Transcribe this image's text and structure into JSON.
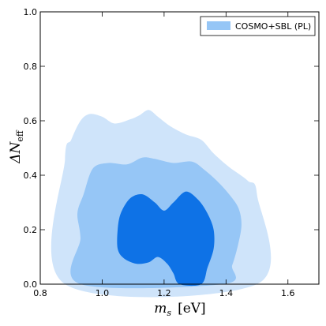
{
  "chart_data": {
    "type": "contour",
    "xlabel": "m_s  [eV]",
    "xlabel_var": "m",
    "xlabel_sub": "s",
    "xlabel_unit": "[eV]",
    "ylabel": "ΔN_eff",
    "ylabel_main": "ΔN",
    "ylabel_sub": "eff",
    "xlim": [
      0.8,
      1.7
    ],
    "ylim": [
      0.0,
      1.0
    ],
    "xticks": [
      0.8,
      1.0,
      1.2,
      1.4,
      1.6
    ],
    "xtick_labels": [
      "0.8",
      "1.0",
      "1.2",
      "1.4",
      "1.6"
    ],
    "yticks": [
      0.0,
      0.2,
      0.4,
      0.6,
      0.8,
      1.0
    ],
    "ytick_labels": [
      "0.0",
      "0.2",
      "0.4",
      "0.6",
      "0.8",
      "1.0"
    ],
    "grid": false,
    "legend": {
      "position": "top-right",
      "entries": [
        "COSMO+SBL (PL)"
      ]
    },
    "colors": {
      "outer": "#cfe4fa",
      "middle": "#96c6f6",
      "inner": "#0e72e6",
      "legend": "#96c6f6"
    },
    "series": [
      {
        "name": "COSMO+SBL (PL)",
        "contours": [
          {
            "level": "outer",
            "points": [
              [
                0.88,
                0.0
              ],
              [
                0.88,
                0.46
              ],
              [
                0.9,
                0.53
              ],
              [
                0.93,
                0.6
              ],
              [
                0.96,
                0.625
              ],
              [
                1.0,
                0.615
              ],
              [
                1.04,
                0.59
              ],
              [
                1.09,
                0.605
              ],
              [
                1.12,
                0.62
              ],
              [
                1.15,
                0.64
              ],
              [
                1.18,
                0.615
              ],
              [
                1.22,
                0.58
              ],
              [
                1.27,
                0.55
              ],
              [
                1.32,
                0.53
              ],
              [
                1.36,
                0.48
              ],
              [
                1.41,
                0.43
              ],
              [
                1.47,
                0.38
              ],
              [
                1.5,
                0.33
              ],
              [
                1.5,
                0.0
              ]
            ]
          },
          {
            "level": "middle",
            "points": [
              [
                0.93,
                0.0
              ],
              [
                0.93,
                0.17
              ],
              [
                0.92,
                0.26
              ],
              [
                0.94,
                0.33
              ],
              [
                0.97,
                0.425
              ],
              [
                1.02,
                0.445
              ],
              [
                1.08,
                0.44
              ],
              [
                1.13,
                0.465
              ],
              [
                1.17,
                0.46
              ],
              [
                1.23,
                0.445
              ],
              [
                1.29,
                0.45
              ],
              [
                1.33,
                0.42
              ],
              [
                1.37,
                0.38
              ],
              [
                1.41,
                0.33
              ],
              [
                1.44,
                0.28
              ],
              [
                1.45,
                0.22
              ],
              [
                1.44,
                0.15
              ],
              [
                1.42,
                0.07
              ],
              [
                1.39,
                0.0
              ]
            ]
          },
          {
            "level": "inner",
            "points": [
              [
                1.07,
                0.095
              ],
              [
                1.05,
                0.13
              ],
              [
                1.05,
                0.2
              ],
              [
                1.06,
                0.26
              ],
              [
                1.09,
                0.315
              ],
              [
                1.13,
                0.33
              ],
              [
                1.17,
                0.3
              ],
              [
                1.2,
                0.27
              ],
              [
                1.23,
                0.3
              ],
              [
                1.27,
                0.34
              ],
              [
                1.31,
                0.31
              ],
              [
                1.34,
                0.26
              ],
              [
                1.36,
                0.2
              ],
              [
                1.36,
                0.13
              ],
              [
                1.34,
                0.06
              ],
              [
                1.32,
                0.0
              ],
              [
                1.25,
                0.0
              ],
              [
                1.23,
                0.04
              ],
              [
                1.21,
                0.075
              ],
              [
                1.18,
                0.1
              ],
              [
                1.15,
                0.08
              ],
              [
                1.11,
                0.075
              ]
            ]
          }
        ]
      }
    ]
  }
}
